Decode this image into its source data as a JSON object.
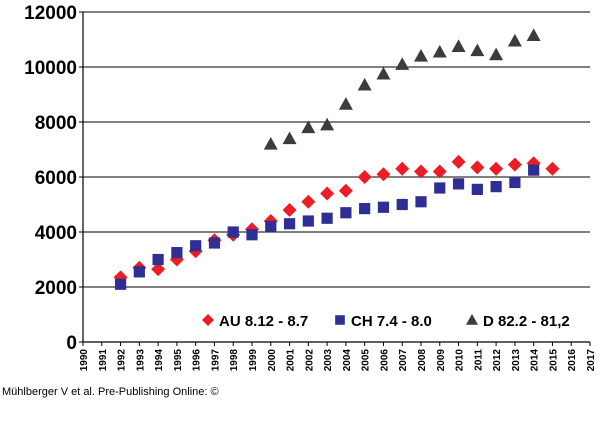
{
  "chart_data": {
    "type": "scatter",
    "x": [
      1990,
      1991,
      1992,
      1993,
      1994,
      1995,
      1996,
      1997,
      1998,
      1999,
      2000,
      2001,
      2002,
      2003,
      2004,
      2005,
      2006,
      2007,
      2008,
      2009,
      2010,
      2011,
      2012,
      2013,
      2014,
      2015,
      2016,
      2017
    ],
    "x_tick_labels": [
      "1990",
      "1991",
      "1992",
      "1993",
      "1994",
      "1995",
      "1996",
      "1997",
      "1998",
      "1999",
      "2000",
      "2001",
      "2002",
      "2003",
      "2004",
      "2005",
      "2006",
      "2007",
      "2008",
      "2009",
      "2010",
      "2011",
      "2012",
      "2013",
      "2014",
      "2015",
      "2016",
      "2017"
    ],
    "ylim": [
      0,
      12000
    ],
    "y_ticks": [
      0,
      2000,
      4000,
      6000,
      8000,
      10000,
      12000
    ],
    "y_tick_labels": [
      "0",
      "2000",
      "4000",
      "6000",
      "8000",
      "10000",
      "12000"
    ],
    "xlim": [
      1990,
      2017
    ],
    "grid": "horizontal",
    "legend_position": "bottom-right",
    "series": [
      {
        "name": "AU 8.12 - 8.7",
        "marker": "diamond",
        "color": "#ee1c25",
        "points": [
          [
            1992,
            2350
          ],
          [
            1993,
            2700
          ],
          [
            1994,
            2650
          ],
          [
            1995,
            3000
          ],
          [
            1996,
            3300
          ],
          [
            1997,
            3700
          ],
          [
            1998,
            3900
          ],
          [
            1999,
            4100
          ],
          [
            2000,
            4400
          ],
          [
            2001,
            4800
          ],
          [
            2002,
            5100
          ],
          [
            2003,
            5400
          ],
          [
            2004,
            5500
          ],
          [
            2005,
            6000
          ],
          [
            2006,
            6100
          ],
          [
            2007,
            6300
          ],
          [
            2008,
            6200
          ],
          [
            2009,
            6200
          ],
          [
            2010,
            6550
          ],
          [
            2011,
            6350
          ],
          [
            2012,
            6300
          ],
          [
            2013,
            6450
          ],
          [
            2014,
            6500
          ],
          [
            2015,
            6300
          ]
        ]
      },
      {
        "name": "CH 7.4 - 8.0",
        "marker": "square",
        "color": "#2e2e94",
        "points": [
          [
            1992,
            2100
          ],
          [
            1993,
            2550
          ],
          [
            1994,
            3000
          ],
          [
            1995,
            3250
          ],
          [
            1996,
            3500
          ],
          [
            1997,
            3600
          ],
          [
            1998,
            4000
          ],
          [
            1999,
            3900
          ],
          [
            2000,
            4200
          ],
          [
            2001,
            4300
          ],
          [
            2002,
            4400
          ],
          [
            2003,
            4500
          ],
          [
            2004,
            4700
          ],
          [
            2005,
            4850
          ],
          [
            2006,
            4900
          ],
          [
            2007,
            5000
          ],
          [
            2008,
            5100
          ],
          [
            2009,
            5600
          ],
          [
            2010,
            5750
          ],
          [
            2011,
            5550
          ],
          [
            2012,
            5650
          ],
          [
            2013,
            5800
          ],
          [
            2014,
            6250
          ]
        ]
      },
      {
        "name": "D 82.2 - 81,2",
        "marker": "triangle",
        "color": "#3c3c3c",
        "points": [
          [
            2000,
            7200
          ],
          [
            2001,
            7400
          ],
          [
            2002,
            7800
          ],
          [
            2003,
            7900
          ],
          [
            2004,
            8650
          ],
          [
            2005,
            9350
          ],
          [
            2006,
            9750
          ],
          [
            2007,
            10100
          ],
          [
            2008,
            10400
          ],
          [
            2009,
            10550
          ],
          [
            2010,
            10750
          ],
          [
            2011,
            10600
          ],
          [
            2012,
            10450
          ],
          [
            2013,
            10950
          ],
          [
            2014,
            11150
          ]
        ]
      }
    ]
  },
  "credit_text": "Mühlberger V et al. Pre-Publishing Online: ©"
}
